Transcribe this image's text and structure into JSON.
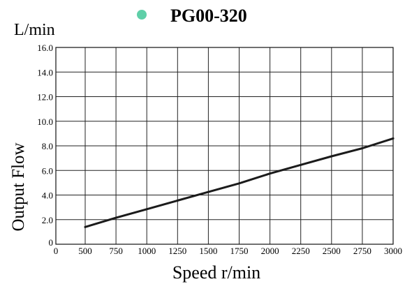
{
  "chart_data": {
    "type": "line",
    "title": "PG00-320",
    "unit_label": "L/min",
    "xlabel": "Speed r/min",
    "ylabel": "Output Flow",
    "xlim": [
      0,
      3000
    ],
    "ylim": [
      0,
      16
    ],
    "x_ticks": [
      "0",
      "500",
      "750",
      "1000",
      "1250",
      "1500",
      "1750",
      "2000",
      "2250",
      "2500",
      "2750",
      "3000"
    ],
    "x_tick_values": [
      0,
      500,
      750,
      1000,
      1250,
      1500,
      1750,
      2000,
      2250,
      2500,
      2750,
      3000
    ],
    "y_ticks": [
      "0",
      "2.0",
      "4.0",
      "6.0",
      "8.0",
      "10.0",
      "12.0",
      "14.0",
      "16.0"
    ],
    "y_tick_values": [
      0,
      2,
      4,
      6,
      8,
      10,
      12,
      14,
      16
    ],
    "grid": true,
    "legend_placement": "top-center",
    "legend_marker_color": "#5fcfa8",
    "line_color": "#1b1b1b",
    "series": [
      {
        "name": "PG00-320",
        "x": [
          500,
          750,
          1000,
          1250,
          1500,
          1750,
          2000,
          2250,
          2500,
          2750,
          3000
        ],
        "y": [
          1.4,
          2.15,
          2.85,
          3.55,
          4.25,
          4.95,
          5.75,
          6.45,
          7.15,
          7.8,
          8.6
        ]
      }
    ]
  }
}
